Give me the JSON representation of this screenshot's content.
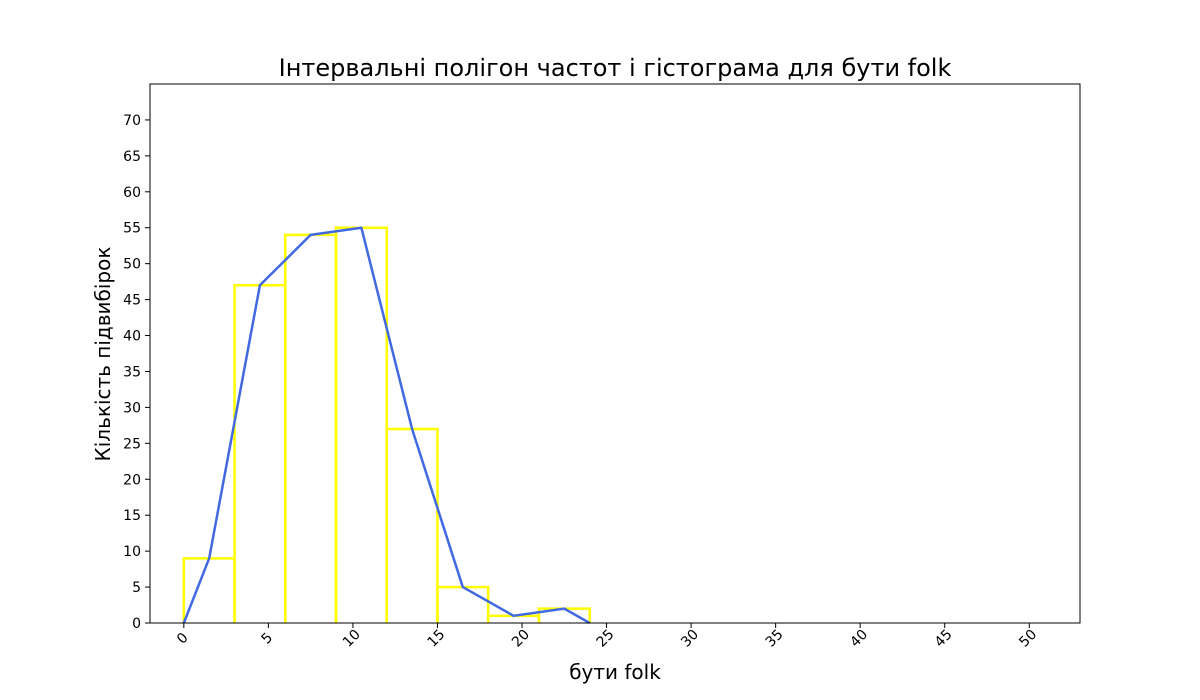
{
  "chart_data": {
    "type": "line",
    "title": "Інтервальні полігон частот і гістограма для бути folk",
    "xlabel": "бути folk",
    "ylabel": "Кількість підвибірок",
    "xlim": [
      -2,
      53
    ],
    "ylim": [
      0,
      75
    ],
    "xticks": [
      0,
      5,
      10,
      15,
      20,
      25,
      30,
      35,
      40,
      45,
      50
    ],
    "yticks": [
      0,
      5,
      10,
      15,
      20,
      25,
      30,
      35,
      40,
      45,
      50,
      55,
      60,
      65,
      70
    ],
    "grid": false,
    "histogram": {
      "color": "#ffff00",
      "bin_edges": [
        0,
        3,
        6,
        9,
        12,
        15,
        18,
        21,
        24
      ],
      "counts": [
        9,
        47,
        54,
        55,
        27,
        5,
        1,
        2
      ]
    },
    "polygon": {
      "color": "#4169e1",
      "x": [
        0,
        1.5,
        4.5,
        7.5,
        10.5,
        13.5,
        16.5,
        19.5,
        22.5,
        24
      ],
      "y": [
        0,
        9,
        47,
        54,
        55,
        27,
        5,
        1,
        2,
        0
      ]
    }
  }
}
